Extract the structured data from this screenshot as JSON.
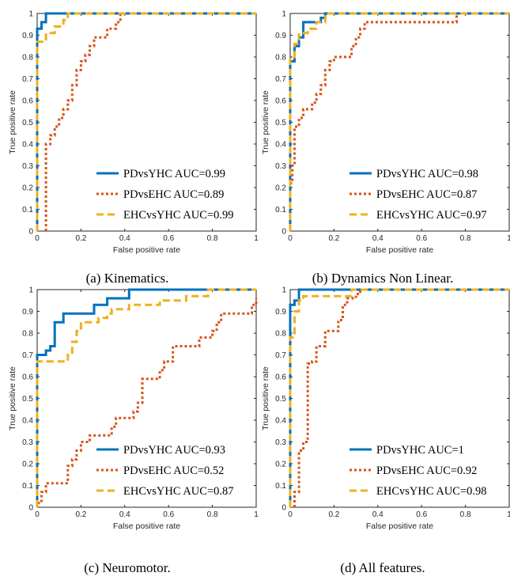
{
  "colors": {
    "series": [
      "#0072BD",
      "#D95319",
      "#EDB120"
    ],
    "axis": "#262626"
  },
  "captions": [
    "(a) Kinematics.",
    "(b) Dynamics Non Linear.",
    "(c) Neuromotor.",
    "(d) All features."
  ],
  "chart_data": [
    {
      "type": "line",
      "xlabel": "False positive rate",
      "ylabel": "True positive rate",
      "xlim": [
        0,
        1
      ],
      "ylim": [
        0,
        1
      ],
      "xticks": [
        "0",
        "0.2",
        "0.4",
        "0.6",
        "0.8",
        "1"
      ],
      "yticks": [
        "0",
        "0.1",
        "0.2",
        "0.3",
        "0.4",
        "0.5",
        "0.6",
        "0.7",
        "0.8",
        "0.9",
        "1"
      ],
      "legend_position": "bottom-right",
      "grid": false,
      "series": [
        {
          "name": "PDvsYHC AUC=0.99",
          "style": "solid",
          "x": [
            0,
            0,
            0.02,
            0.02,
            0.04,
            0.04,
            1
          ],
          "y": [
            0,
            0.93,
            0.93,
            0.96,
            0.96,
            1,
            1
          ]
        },
        {
          "name": "PDvsEHC AUC=0.89",
          "style": "dotted",
          "x": [
            0.04,
            0.04,
            0.06,
            0.06,
            0.08,
            0.08,
            0.1,
            0.1,
            0.12,
            0.12,
            0.14,
            0.14,
            0.16,
            0.16,
            0.18,
            0.18,
            0.2,
            0.2,
            0.22,
            0.22,
            0.24,
            0.24,
            0.26,
            0.26,
            0.32,
            0.32,
            0.36,
            0.36,
            0.38,
            0.38,
            1
          ],
          "y": [
            0,
            0.4,
            0.4,
            0.44,
            0.44,
            0.48,
            0.48,
            0.52,
            0.52,
            0.56,
            0.56,
            0.6,
            0.6,
            0.67,
            0.67,
            0.74,
            0.74,
            0.78,
            0.78,
            0.81,
            0.81,
            0.85,
            0.85,
            0.89,
            0.89,
            0.93,
            0.93,
            0.96,
            0.96,
            1,
            1
          ]
        },
        {
          "name": "EHCvsYHC AUC=0.99",
          "style": "dashed",
          "x": [
            0,
            0,
            0.04,
            0.04,
            0.08,
            0.08,
            0.12,
            0.12,
            0.14,
            0.14,
            1
          ],
          "y": [
            0,
            0.87,
            0.87,
            0.91,
            0.91,
            0.94,
            0.94,
            0.97,
            0.97,
            1,
            1
          ]
        }
      ]
    },
    {
      "type": "line",
      "xlabel": "False positive rate",
      "ylabel": "True positive rate",
      "xlim": [
        0,
        1
      ],
      "ylim": [
        0,
        1
      ],
      "xticks": [
        "0",
        "0.2",
        "0.4",
        "0.6",
        "0.8",
        "1"
      ],
      "yticks": [
        "0",
        "0.1",
        "0.2",
        "0.3",
        "0.4",
        "0.5",
        "0.6",
        "0.7",
        "0.8",
        "0.9",
        "1"
      ],
      "legend_position": "bottom-right",
      "grid": false,
      "series": [
        {
          "name": "PDvsYHC AUC=0.98",
          "style": "solid",
          "x": [
            0,
            0,
            0.02,
            0.02,
            0.04,
            0.04,
            0.06,
            0.06,
            0.14,
            0.14,
            0.16,
            0.16,
            1
          ],
          "y": [
            0,
            0.78,
            0.78,
            0.85,
            0.85,
            0.89,
            0.89,
            0.96,
            0.96,
            0.98,
            0.98,
            1,
            1
          ]
        },
        {
          "name": "PDvsEHC AUC=0.87",
          "style": "dotted",
          "x": [
            0,
            0,
            0.01,
            0.01,
            0.02,
            0.02,
            0.04,
            0.04,
            0.06,
            0.06,
            0.1,
            0.1,
            0.12,
            0.12,
            0.14,
            0.14,
            0.16,
            0.16,
            0.18,
            0.18,
            0.2,
            0.2,
            0.28,
            0.28,
            0.3,
            0.3,
            0.32,
            0.32,
            0.34,
            0.34,
            0.76,
            0.76,
            1
          ],
          "y": [
            0,
            0.22,
            0.22,
            0.3,
            0.3,
            0.48,
            0.48,
            0.52,
            0.52,
            0.56,
            0.56,
            0.59,
            0.59,
            0.63,
            0.63,
            0.67,
            0.67,
            0.74,
            0.74,
            0.78,
            0.78,
            0.8,
            0.8,
            0.85,
            0.85,
            0.89,
            0.89,
            0.93,
            0.93,
            0.96,
            0.96,
            1,
            1
          ]
        },
        {
          "name": "EHCvsYHC AUC=0.97",
          "style": "dashed",
          "x": [
            0,
            0,
            0.02,
            0.02,
            0.04,
            0.04,
            0.08,
            0.08,
            0.12,
            0.12,
            0.16,
            0.16,
            1
          ],
          "y": [
            0,
            0.8,
            0.8,
            0.86,
            0.86,
            0.91,
            0.91,
            0.93,
            0.93,
            0.96,
            0.96,
            1,
            1
          ]
        }
      ]
    },
    {
      "type": "line",
      "xlabel": "False positive rate",
      "ylabel": "True positive rate",
      "xlim": [
        0,
        1
      ],
      "ylim": [
        0,
        1
      ],
      "xticks": [
        "0",
        "0.2",
        "0.4",
        "0.6",
        "0.8",
        "1"
      ],
      "yticks": [
        "0",
        "0.1",
        "0.2",
        "0.3",
        "0.4",
        "0.5",
        "0.6",
        "0.7",
        "0.8",
        "0.9",
        "1"
      ],
      "legend_position": "bottom-right",
      "grid": false,
      "series": [
        {
          "name": "PDvsYHC AUC=0.93",
          "style": "solid",
          "x": [
            0,
            0,
            0.04,
            0.04,
            0.06,
            0.06,
            0.08,
            0.08,
            0.12,
            0.12,
            0.18,
            0.18,
            0.26,
            0.26,
            0.32,
            0.32,
            0.36,
            0.36,
            0.42,
            0.42,
            1
          ],
          "y": [
            0,
            0.7,
            0.7,
            0.72,
            0.72,
            0.74,
            0.74,
            0.85,
            0.85,
            0.89,
            0.89,
            0.89,
            0.89,
            0.93,
            0.93,
            0.96,
            0.96,
            0.96,
            0.96,
            1,
            1
          ]
        },
        {
          "name": "PDvsEHC AUC=0.52",
          "style": "dotted",
          "x": [
            0,
            0,
            0.02,
            0.02,
            0.04,
            0.04,
            0.14,
            0.14,
            0.16,
            0.16,
            0.18,
            0.18,
            0.2,
            0.2,
            0.24,
            0.24,
            0.32,
            0.32,
            0.34,
            0.34,
            0.36,
            0.36,
            0.44,
            0.44,
            0.46,
            0.46,
            0.48,
            0.48,
            0.56,
            0.56,
            0.58,
            0.58,
            0.62,
            0.62,
            0.72,
            0.72,
            0.74,
            0.74,
            0.8,
            0.8,
            0.82,
            0.82,
            0.84,
            0.84,
            0.98,
            0.98,
            1,
            1
          ],
          "y": [
            0,
            0.02,
            0.02,
            0.07,
            0.07,
            0.11,
            0.11,
            0.19,
            0.19,
            0.22,
            0.22,
            0.26,
            0.26,
            0.3,
            0.3,
            0.33,
            0.33,
            0.33,
            0.33,
            0.37,
            0.37,
            0.41,
            0.41,
            0.44,
            0.44,
            0.48,
            0.48,
            0.59,
            0.59,
            0.63,
            0.63,
            0.67,
            0.67,
            0.74,
            0.74,
            0.74,
            0.74,
            0.78,
            0.78,
            0.81,
            0.81,
            0.85,
            0.85,
            0.89,
            0.89,
            0.93,
            0.93,
            0.96
          ]
        },
        {
          "name": "EHCvsYHC AUC=0.87",
          "style": "dashed",
          "x": [
            0,
            0,
            0.14,
            0.14,
            0.16,
            0.16,
            0.18,
            0.18,
            0.2,
            0.2,
            0.26,
            0.26,
            0.28,
            0.28,
            0.32,
            0.32,
            0.34,
            0.34,
            0.42,
            0.42,
            0.56,
            0.56,
            0.68,
            0.68,
            0.78,
            0.78,
            1
          ],
          "y": [
            0,
            0.67,
            0.67,
            0.7,
            0.7,
            0.76,
            0.76,
            0.81,
            0.81,
            0.85,
            0.85,
            0.85,
            0.85,
            0.87,
            0.87,
            0.89,
            0.89,
            0.91,
            0.91,
            0.93,
            0.93,
            0.95,
            0.95,
            0.97,
            0.97,
            1,
            1
          ]
        }
      ]
    },
    {
      "type": "line",
      "xlabel": "False positive rate",
      "ylabel": "True positive rate",
      "xlim": [
        0,
        1
      ],
      "ylim": [
        0,
        1
      ],
      "xticks": [
        "0",
        "0.2",
        "0.4",
        "0.6",
        "0.8",
        "1"
      ],
      "yticks": [
        "0",
        "0.1",
        "0.2",
        "0.3",
        "0.4",
        "0.5",
        "0.6",
        "0.7",
        "0.8",
        "0.9",
        "1"
      ],
      "legend_position": "bottom-right",
      "grid": false,
      "series": [
        {
          "name": "PDvsYHC AUC=1",
          "style": "solid",
          "x": [
            0,
            0,
            0.02,
            0.02,
            0.04,
            0.04,
            1
          ],
          "y": [
            0,
            0.93,
            0.93,
            0.95,
            0.95,
            1,
            1
          ]
        },
        {
          "name": "PDvsEHC AUC=0.92",
          "style": "dotted",
          "x": [
            0.02,
            0.02,
            0.04,
            0.04,
            0.06,
            0.06,
            0.08,
            0.08,
            0.1,
            0.1,
            0.12,
            0.12,
            0.14,
            0.14,
            0.16,
            0.16,
            0.22,
            0.22,
            0.24,
            0.24,
            0.26,
            0.26,
            0.3,
            0.3,
            0.32,
            0.32,
            1
          ],
          "y": [
            0,
            0.07,
            0.07,
            0.26,
            0.26,
            0.3,
            0.3,
            0.66,
            0.66,
            0.67,
            0.67,
            0.74,
            0.74,
            0.74,
            0.74,
            0.81,
            0.81,
            0.86,
            0.86,
            0.93,
            0.93,
            0.96,
            0.96,
            0.98,
            0.98,
            1,
            1
          ]
        },
        {
          "name": "EHCvsYHC AUC=0.98",
          "style": "dashed",
          "x": [
            0,
            0,
            0.02,
            0.02,
            0.04,
            0.04,
            0.06,
            0.06,
            0.28,
            0.28,
            1
          ],
          "y": [
            0,
            0.78,
            0.78,
            0.9,
            0.9,
            0.95,
            0.95,
            0.97,
            0.97,
            1,
            1
          ]
        }
      ]
    }
  ]
}
